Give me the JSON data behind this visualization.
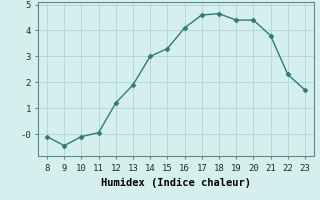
{
  "x": [
    8,
    9,
    10,
    11,
    12,
    13,
    14,
    15,
    16,
    17,
    18,
    19,
    20,
    21,
    22,
    23
  ],
  "y": [
    -0.1,
    -0.45,
    -0.1,
    0.05,
    1.2,
    1.9,
    3.0,
    3.3,
    4.1,
    4.6,
    4.65,
    4.4,
    4.4,
    3.8,
    2.3,
    1.7
  ],
  "xlabel": "Humidex (Indice chaleur)",
  "xlim": [
    7.5,
    23.5
  ],
  "ylim": [
    -0.85,
    5.1
  ],
  "yticks": [
    0,
    1,
    2,
    3,
    4,
    5
  ],
  "ytick_labels": [
    "-0",
    "1",
    "2",
    "3",
    "4",
    "5"
  ],
  "xticks": [
    8,
    9,
    10,
    11,
    12,
    13,
    14,
    15,
    16,
    17,
    18,
    19,
    20,
    21,
    22,
    23
  ],
  "line_color": "#2e7d6e",
  "marker": "D",
  "marker_size": 2.5,
  "bg_color": "#d4efed",
  "grid_color": "#b8d8d5",
  "font_family": "monospace",
  "tick_fontsize": 6.5,
  "xlabel_fontsize": 7.5
}
